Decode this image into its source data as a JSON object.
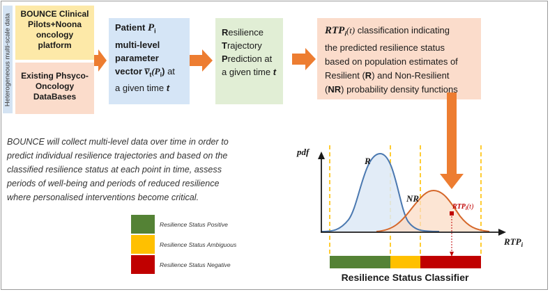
{
  "left_label": "Heterogeneous multi-scale data",
  "box_bounce": [
    "BOUNCE Clinical",
    "Pilots+Noona",
    "oncology",
    "platform"
  ],
  "box_existing": [
    "Existing Phsyco-",
    "Oncology",
    "DataBases"
  ],
  "box_patient": {
    "line1": "Patient ",
    "P": "P",
    "sub_i": "i",
    "line2": "multi-level",
    "line3": "parameter",
    "vector_word": "vector ",
    "v": "v̅",
    "sub_t": "t",
    "paren": "(P",
    "close": ")",
    "at": " at",
    "line5_a": "a given time ",
    "t": "t"
  },
  "box_rtp": {
    "R": "R",
    "r_rest": "esilience",
    "T": "T",
    "t_rest": "rajectory",
    "P": "P",
    "p_rest": "rediction at",
    "last_a": "a given time ",
    "last_t": "t"
  },
  "box_class": {
    "rtp": "RTP",
    "rtp_sub": "i",
    "rtp_arg": "(t)",
    "l1": " classification indicating",
    "l2": "the predicted resilience status",
    "l3": "based on population estimates of",
    "l4a": "Resilient (",
    "l4b": "R",
    "l4c": ") and Non-Resilient",
    "l5a": "(",
    "l5b": "NR",
    "l5c": ") probability density functions"
  },
  "paragraph": [
    "BOUNCE will collect multi-level data over time in order to",
    "predict individual resilience trajectories and based on the",
    "classified resilience status at each point in time, assess",
    "periods of well-being and periods of reduced resilience",
    "where personalised interventions become critical."
  ],
  "legend": [
    {
      "label": "Resilience Status Positive",
      "color": "#548235"
    },
    {
      "label": "Resilience Status Ambiguous",
      "color": "#ffc000"
    },
    {
      "label": "Resilience Status Negative",
      "color": "#c00000"
    }
  ],
  "chart": {
    "y_label": "pdf",
    "x_label": "RTP",
    "x_sub": "i",
    "curve_r": "R",
    "curve_nr": "NR",
    "marker": "RTP",
    "marker_sub": "i",
    "marker_arg": "(t)"
  },
  "classifier_title": "Resilience Status Classifier",
  "colors": {
    "arrow": "#ed7d31",
    "blue_curve": "#4a78b0",
    "orange_curve": "#d5672a",
    "dash": "#ffc000"
  }
}
